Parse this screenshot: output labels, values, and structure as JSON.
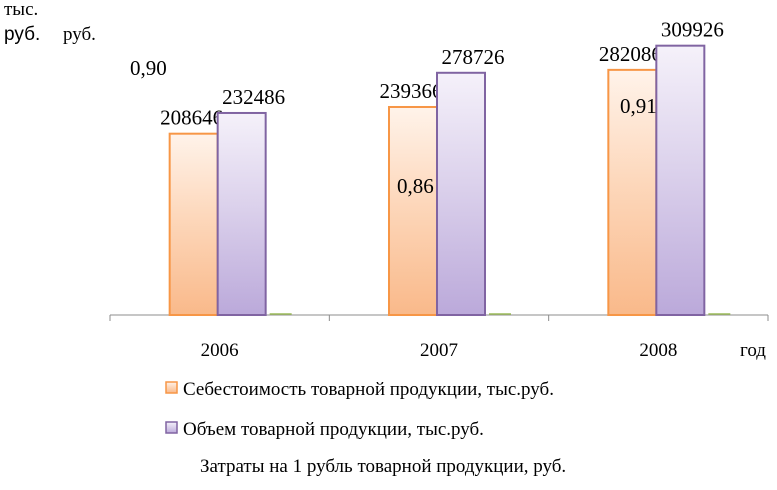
{
  "chart_data": {
    "type": "bar",
    "ylabel_left_line1": "тыс.",
    "ylabel_left_line2": "руб.",
    "ylabel_right": "руб.",
    "xlabel": "год",
    "categories": [
      "2006",
      "2007",
      "2008"
    ],
    "series": [
      {
        "name": "Себестоимость товарной продукции, тыс.руб.",
        "values": [
          208646,
          239366,
          282086
        ],
        "labels": [
          "208646",
          "239366",
          "282086"
        ],
        "color": "#F79646"
      },
      {
        "name": "Объем товарной продукции, тыс.руб.",
        "values": [
          232486,
          278726,
          309926
        ],
        "labels": [
          "232486",
          "278726",
          "309926"
        ],
        "color": "#8064A2"
      },
      {
        "name": "Затраты на 1 рубль товарной продукции, руб.",
        "values": [
          0.9,
          0.86,
          0.91
        ],
        "labels": [
          "0,90",
          "0,86",
          "0,91"
        ],
        "color": "#9BBB59"
      }
    ],
    "ylim": [
      0,
      325000
    ],
    "grid": false,
    "legend_position": "bottom"
  }
}
